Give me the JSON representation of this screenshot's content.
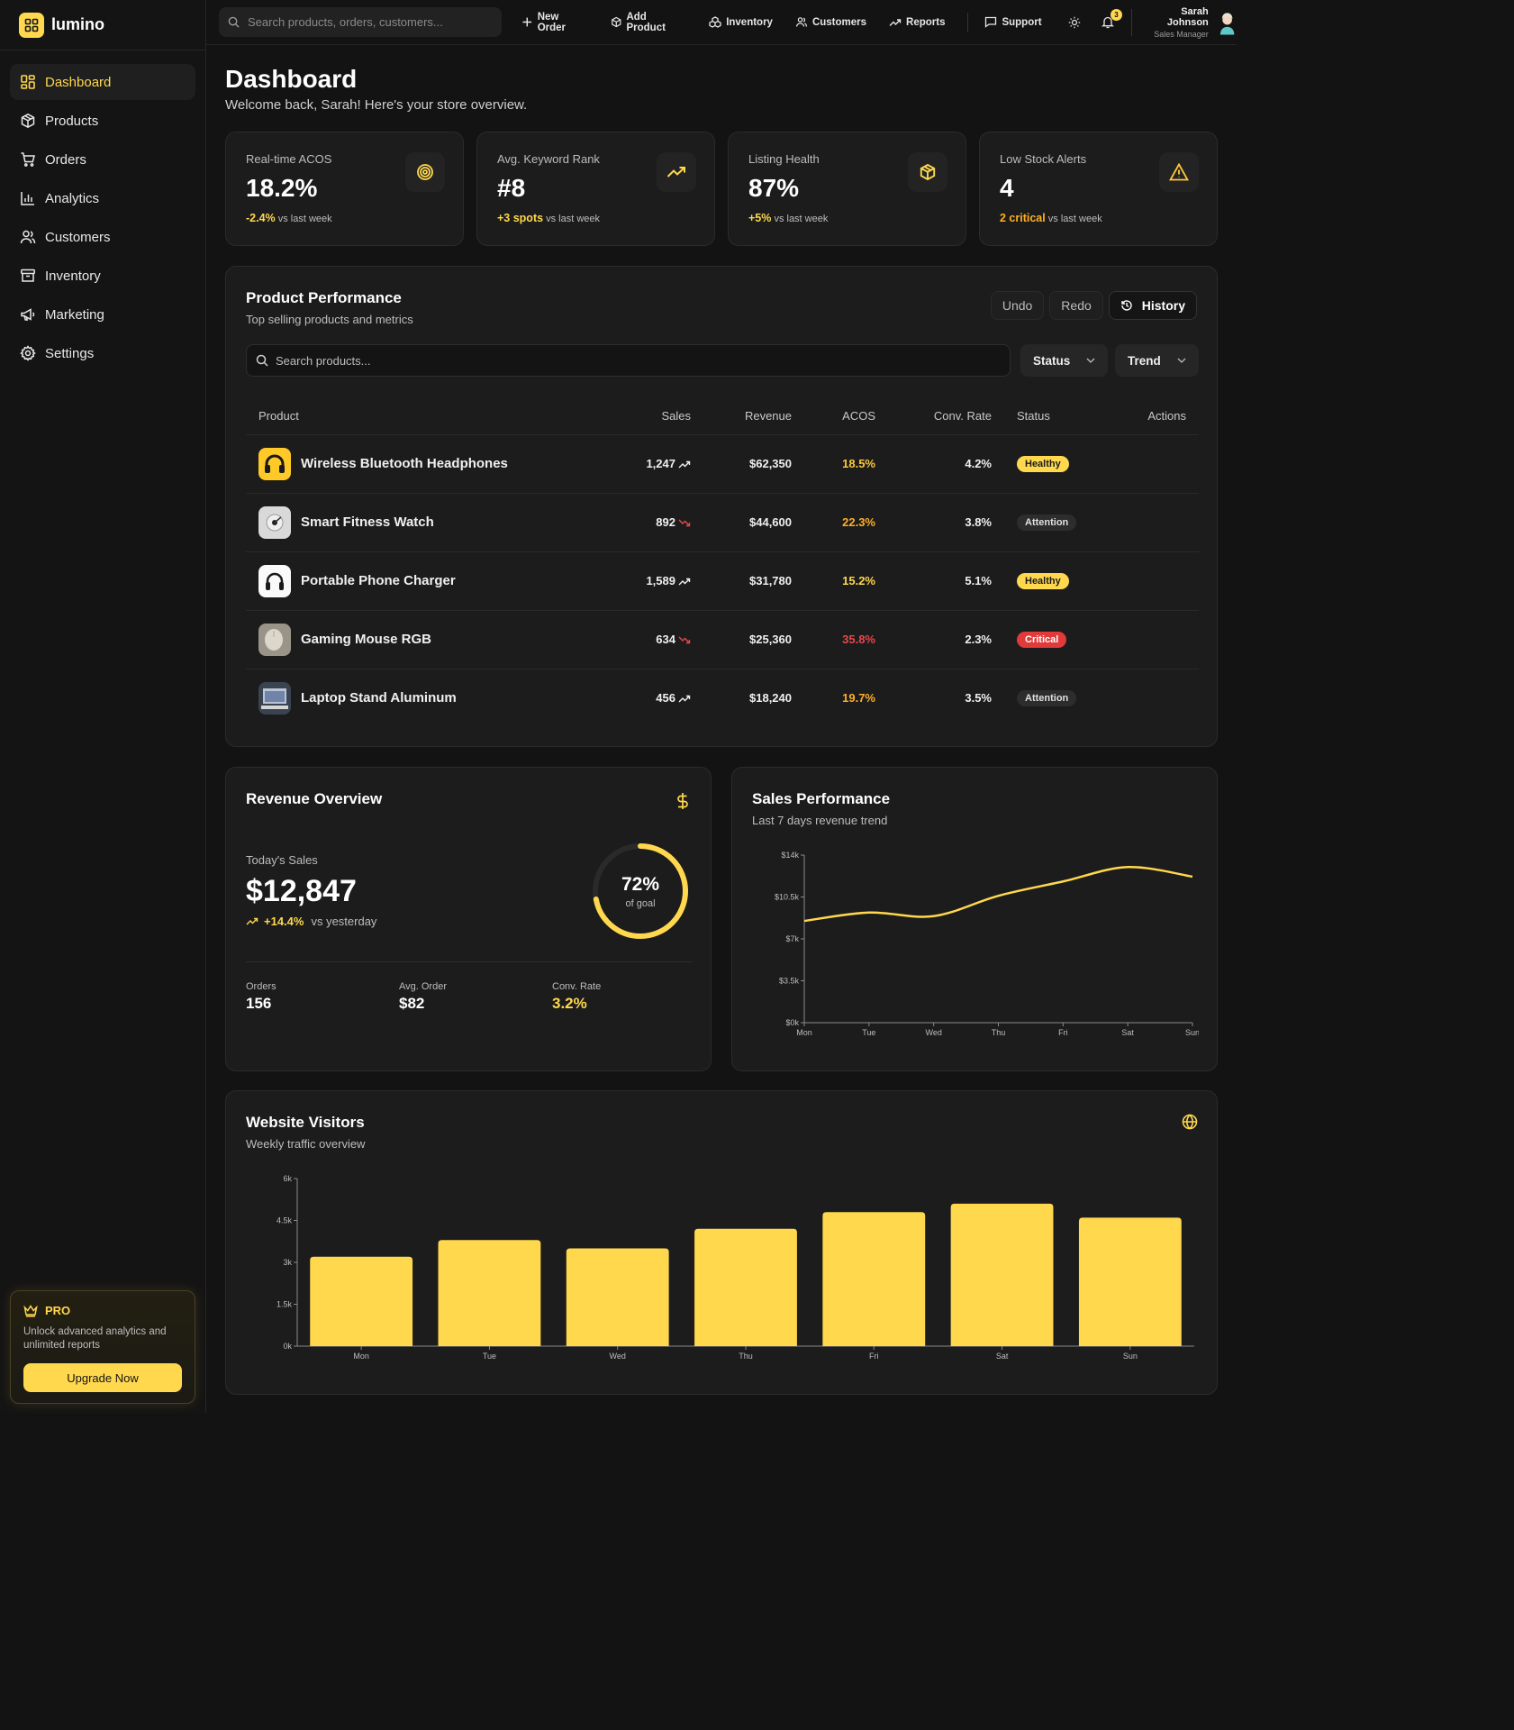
{
  "brand": {
    "name": "lumino"
  },
  "sidebar": {
    "items": [
      {
        "label": "Dashboard",
        "icon": "dashboard-icon",
        "active": true
      },
      {
        "label": "Products",
        "icon": "box-icon"
      },
      {
        "label": "Orders",
        "icon": "cart-icon"
      },
      {
        "label": "Analytics",
        "icon": "bar-chart-icon"
      },
      {
        "label": "Customers",
        "icon": "users-icon"
      },
      {
        "label": "Inventory",
        "icon": "archive-icon"
      },
      {
        "label": "Marketing",
        "icon": "megaphone-icon"
      },
      {
        "label": "Settings",
        "icon": "gear-icon"
      }
    ],
    "pro": {
      "title": "PRO",
      "text": "Unlock advanced analytics and unlimited reports",
      "button": "Upgrade Now"
    }
  },
  "topbar": {
    "search_placeholder": "Search products, orders, customers...",
    "nav": [
      {
        "label": "New Order",
        "icon": "plus-icon"
      },
      {
        "label": "Add Product",
        "icon": "box-icon"
      },
      {
        "label": "Inventory",
        "icon": "boxes-icon"
      },
      {
        "label": "Customers",
        "icon": "users-icon"
      },
      {
        "label": "Reports",
        "icon": "trend-icon"
      },
      {
        "label": "Support",
        "icon": "chat-icon"
      }
    ],
    "notifications": "3",
    "user": {
      "name": "Sarah Johnson",
      "role": "Sales Manager"
    }
  },
  "header": {
    "title": "Dashboard",
    "subtitle": "Welcome back, Sarah! Here's your store overview."
  },
  "stats": [
    {
      "label": "Real-time ACOS",
      "value": "18.2%",
      "change": "-2.4%",
      "suffix": "vs last week",
      "icon": "target-icon"
    },
    {
      "label": "Avg. Keyword Rank",
      "value": "#8",
      "change": "+3 spots",
      "suffix": "vs last week",
      "icon": "trend-up-icon"
    },
    {
      "label": "Listing Health",
      "value": "87%",
      "change": "+5%",
      "suffix": "vs last week",
      "icon": "package-icon"
    },
    {
      "label": "Low Stock Alerts",
      "value": "4",
      "change": "2 critical",
      "suffix": "vs last week",
      "icon": "alert-triangle-icon"
    }
  ],
  "performance": {
    "title": "Product Performance",
    "subtitle": "Top selling products and metrics",
    "undo": "Undo",
    "redo": "Redo",
    "history": "History",
    "search_placeholder": "Search products...",
    "status_filter": "Status",
    "trend_filter": "Trend",
    "columns": [
      "Product",
      "Sales",
      "Revenue",
      "ACOS",
      "Conv. Rate",
      "Status",
      "Actions"
    ],
    "rows": [
      {
        "product": "Wireless Bluetooth Headphones",
        "sales": "1,247",
        "trend": "up",
        "revenue": "$62,350",
        "acos": "18.5%",
        "acos_color": "#ffc93a",
        "conv": "4.2%",
        "status": "Healthy",
        "status_type": "healthy"
      },
      {
        "product": "Smart Fitness Watch",
        "sales": "892",
        "trend": "down",
        "revenue": "$44,600",
        "acos": "22.3%",
        "acos_color": "#ffae2a",
        "conv": "3.8%",
        "status": "Attention",
        "status_type": "attention"
      },
      {
        "product": "Portable Phone Charger",
        "sales": "1,589",
        "trend": "up",
        "revenue": "$31,780",
        "acos": "15.2%",
        "acos_color": "#ffd84d",
        "conv": "5.1%",
        "status": "Healthy",
        "status_type": "healthy"
      },
      {
        "product": "Gaming Mouse RGB",
        "sales": "634",
        "trend": "down",
        "revenue": "$25,360",
        "acos": "35.8%",
        "acos_color": "#e5484d",
        "conv": "2.3%",
        "status": "Critical",
        "status_type": "critical"
      },
      {
        "product": "Laptop Stand Aluminum",
        "sales": "456",
        "trend": "up",
        "revenue": "$18,240",
        "acos": "19.7%",
        "acos_color": "#ffae2a",
        "conv": "3.5%",
        "status": "Attention",
        "status_type": "attention"
      }
    ]
  },
  "revenue": {
    "title": "Revenue Overview",
    "today_label": "Today's Sales",
    "today_value": "$12,847",
    "change": "+14.4%",
    "change_suffix": "vs yesterday",
    "goal_percent": 72,
    "goal_value": "72%",
    "goal_label": "of goal",
    "metrics": [
      {
        "label": "Orders",
        "value": "156"
      },
      {
        "label": "Avg. Order",
        "value": "$82"
      },
      {
        "label": "Conv. Rate",
        "value": "3.2%"
      }
    ]
  },
  "sales_perf": {
    "title": "Sales Performance",
    "subtitle": "Last 7 days revenue trend"
  },
  "visitors": {
    "title": "Website Visitors",
    "subtitle": "Weekly traffic overview"
  },
  "chart_data": [
    {
      "type": "line",
      "categories": [
        "Mon",
        "Tue",
        "Wed",
        "Thu",
        "Fri",
        "Sat",
        "Sun"
      ],
      "values": [
        8500,
        9200,
        8900,
        10600,
        11800,
        13000,
        12200
      ],
      "yticks": [
        "$0k",
        "$3.5k",
        "$7k",
        "$10.5k",
        "$14k"
      ],
      "ylim": [
        0,
        14000
      ],
      "color": "#ffd84d"
    },
    {
      "type": "bar",
      "categories": [
        "Mon",
        "Tue",
        "Wed",
        "Thu",
        "Fri",
        "Sat",
        "Sun"
      ],
      "values": [
        3200,
        3800,
        3500,
        4200,
        4800,
        5100,
        4600
      ],
      "yticks": [
        "0k",
        "1.5k",
        "3k",
        "4.5k",
        "6k"
      ],
      "ylim": [
        0,
        6000
      ],
      "color": "#ffd84d"
    }
  ]
}
